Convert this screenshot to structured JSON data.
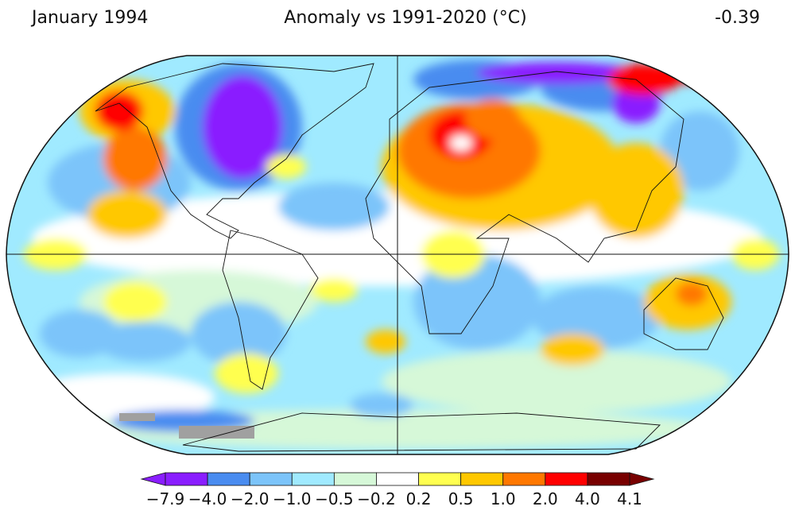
{
  "header": {
    "date": "January 1994",
    "title": "Anomaly vs 1991-2020 (°C)",
    "global_mean": "-0.39"
  },
  "map": {
    "projection": "Robinson",
    "variable": "surface temperature anomaly",
    "missing_data_color": "#a0a0a0",
    "regions_notable": [
      {
        "region": "Eastern North America / Canada",
        "class": "-7.9 to -4.0"
      },
      {
        "region": "Northern Siberia",
        "class": "-7.9 to -4.0"
      },
      {
        "region": "Europe / Middle East / Central Asia",
        "class": "1.0 to 4.0"
      },
      {
        "region": "Alaska",
        "class": "2.0 to 4.0"
      },
      {
        "region": "Eastern Siberia (Chukotka)",
        "class": "2.0 to 4.0"
      },
      {
        "region": "Australia (north-east)",
        "class": "1.0 to 2.0"
      }
    ]
  },
  "colorbar": {
    "labels": [
      "−7.9",
      "−4.0",
      "−2.0",
      "−1.0",
      "−0.5",
      "−0.2",
      "0.2",
      "0.5",
      "1.0",
      "2.0",
      "4.0",
      "4.1"
    ],
    "colors": [
      "#8a1eff",
      "#4a8cf0",
      "#7cc4fa",
      "#a0eaff",
      "#d6f8d8",
      "#ffffff",
      "#ffff50",
      "#ffc800",
      "#ff7800",
      "#ff0000",
      "#780000"
    ],
    "extend": "both"
  }
}
